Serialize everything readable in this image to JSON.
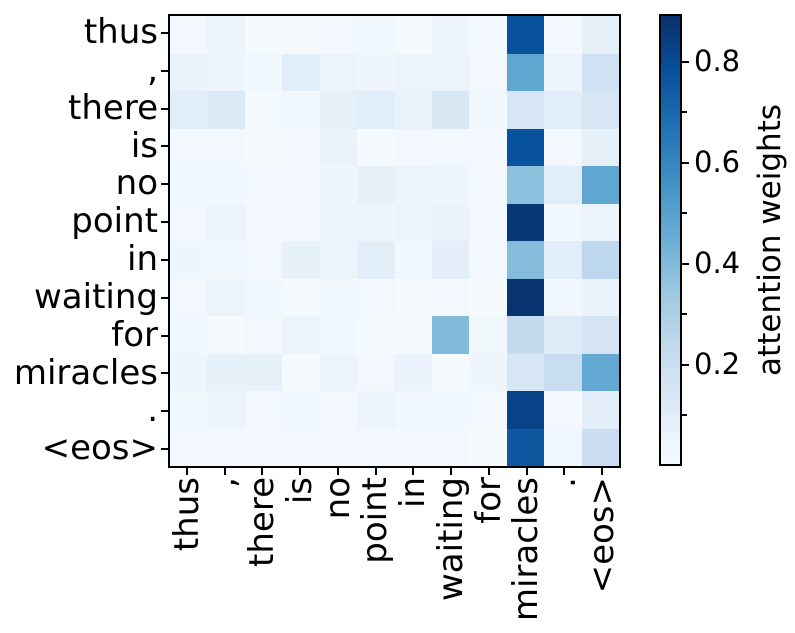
{
  "figure": {
    "background": "#ffffff",
    "text_color": "#000000"
  },
  "chart_data": {
    "type": "heatmap",
    "title": "",
    "xlabel": "",
    "ylabel": "",
    "x_labels": [
      "thus",
      ",",
      "there",
      "is",
      "no",
      "point",
      "in",
      "waiting",
      "for",
      "miracles",
      ".",
      "<eos>"
    ],
    "y_labels": [
      "thus",
      ",",
      "there",
      "is",
      "no",
      "point",
      "in",
      "waiting",
      "for",
      "miracles",
      ".",
      "<eos>"
    ],
    "matrix": [
      [
        0.02,
        0.05,
        0.01,
        0.01,
        0.02,
        0.03,
        0.01,
        0.04,
        0.02,
        0.78,
        0.02,
        0.08
      ],
      [
        0.06,
        0.04,
        0.03,
        0.1,
        0.05,
        0.04,
        0.05,
        0.05,
        0.02,
        0.48,
        0.05,
        0.18
      ],
      [
        0.1,
        0.12,
        0.01,
        0.03,
        0.08,
        0.1,
        0.06,
        0.13,
        0.03,
        0.15,
        0.1,
        0.15
      ],
      [
        0.02,
        0.02,
        0.01,
        0.02,
        0.06,
        0.01,
        0.02,
        0.02,
        0.02,
        0.78,
        0.02,
        0.08
      ],
      [
        0.03,
        0.03,
        0.02,
        0.02,
        0.04,
        0.07,
        0.05,
        0.04,
        0.02,
        0.37,
        0.1,
        0.48
      ],
      [
        0.02,
        0.05,
        0.02,
        0.02,
        0.04,
        0.04,
        0.05,
        0.06,
        0.02,
        0.87,
        0.03,
        0.05
      ],
      [
        0.04,
        0.03,
        0.02,
        0.07,
        0.05,
        0.1,
        0.03,
        0.09,
        0.02,
        0.39,
        0.1,
        0.25
      ],
      [
        0.02,
        0.05,
        0.03,
        0.01,
        0.03,
        0.02,
        0.01,
        0.02,
        0.01,
        0.88,
        0.03,
        0.06
      ],
      [
        0.03,
        0.01,
        0.02,
        0.05,
        0.03,
        0.01,
        0.01,
        0.4,
        0.03,
        0.23,
        0.11,
        0.16
      ],
      [
        0.04,
        0.07,
        0.07,
        0.01,
        0.05,
        0.02,
        0.06,
        0.01,
        0.04,
        0.14,
        0.21,
        0.47
      ],
      [
        0.03,
        0.05,
        0.02,
        0.03,
        0.02,
        0.05,
        0.03,
        0.03,
        0.02,
        0.83,
        0.02,
        0.09
      ],
      [
        0.02,
        0.02,
        0.02,
        0.02,
        0.02,
        0.02,
        0.02,
        0.02,
        0.01,
        0.76,
        0.03,
        0.2
      ]
    ],
    "vmin": 0.0,
    "vmax": 0.895,
    "colormap": "Blues",
    "colormap_stops": [
      [
        247,
        251,
        255
      ],
      [
        222,
        235,
        247
      ],
      [
        198,
        219,
        239
      ],
      [
        158,
        202,
        225
      ],
      [
        107,
        174,
        214
      ],
      [
        66,
        146,
        198
      ],
      [
        33,
        113,
        181
      ],
      [
        8,
        81,
        156
      ],
      [
        8,
        48,
        107
      ]
    ],
    "grid": false,
    "legend_position": "none",
    "colorbar": {
      "label": "attention weights",
      "major_ticks": [
        "0.2",
        "0.4",
        "0.6",
        "0.8"
      ],
      "major_tick_values": [
        0.2,
        0.4,
        0.6,
        0.8
      ],
      "minor_tick_values": [
        0.1,
        0.3,
        0.5,
        0.7
      ],
      "position": "right"
    }
  }
}
